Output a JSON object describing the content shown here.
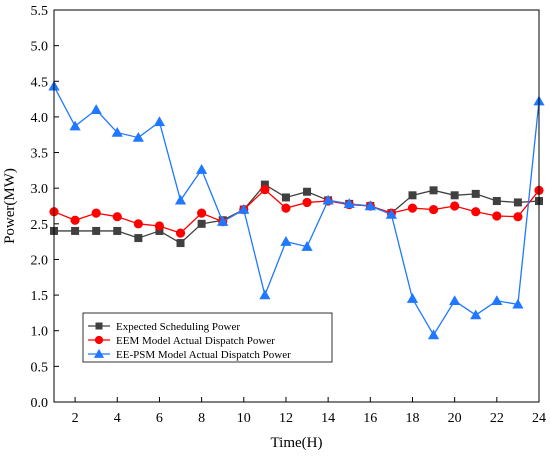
{
  "chart_data": {
    "type": "line",
    "title": "",
    "xlabel": "Time(H)",
    "ylabel": "Power(MW)",
    "xlim": [
      1,
      24
    ],
    "ylim": [
      0.0,
      5.5
    ],
    "xticks": [
      2,
      4,
      6,
      8,
      10,
      12,
      14,
      16,
      18,
      20,
      22,
      24
    ],
    "yticks": [
      0.0,
      0.5,
      1.0,
      1.5,
      2.0,
      2.5,
      3.0,
      3.5,
      4.0,
      4.5,
      5.0,
      5.5
    ],
    "grid": false,
    "legend_position": "bottom-left",
    "x": [
      1,
      2,
      3,
      4,
      5,
      6,
      7,
      8,
      9,
      10,
      11,
      12,
      13,
      14,
      15,
      16,
      17,
      18,
      19,
      20,
      21,
      22,
      23,
      24
    ],
    "series": [
      {
        "name": "Expected Scheduling Power",
        "color": "#404040",
        "marker": "square",
        "values": [
          2.4,
          2.4,
          2.4,
          2.4,
          2.3,
          2.4,
          2.23,
          2.5,
          2.55,
          2.7,
          3.05,
          2.87,
          2.95,
          2.83,
          2.78,
          2.75,
          2.65,
          2.9,
          2.97,
          2.9,
          2.92,
          2.82,
          2.8,
          2.82
        ]
      },
      {
        "name": "EEM Model Actual Dispatch Power",
        "color": "#ff0000",
        "marker": "circle",
        "values": [
          2.67,
          2.55,
          2.65,
          2.6,
          2.5,
          2.47,
          2.37,
          2.65,
          2.53,
          2.7,
          2.98,
          2.72,
          2.8,
          2.82,
          2.77,
          2.75,
          2.65,
          2.72,
          2.7,
          2.75,
          2.67,
          2.61,
          2.6,
          2.97
        ]
      },
      {
        "name": "EE-PSM Model Actual Dispatch Power",
        "color": "#1f78ff",
        "marker": "triangle",
        "values": [
          4.43,
          3.87,
          4.1,
          3.78,
          3.71,
          3.93,
          2.83,
          3.26,
          2.53,
          2.7,
          1.5,
          2.25,
          2.18,
          2.83,
          2.78,
          2.75,
          2.63,
          1.45,
          0.94,
          1.42,
          1.22,
          1.42,
          1.37,
          4.22
        ]
      }
    ]
  }
}
